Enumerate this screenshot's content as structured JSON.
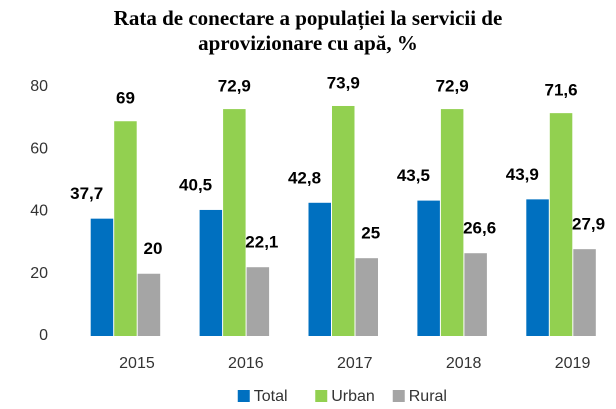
{
  "chart_data": {
    "type": "bar",
    "title": "Rata de conectare a populației la servicii de aprovizionare cu apă, %",
    "categories": [
      "2015",
      "2016",
      "2017",
      "2018",
      "2019"
    ],
    "series": [
      {
        "name": "Total",
        "color": "#0070c0",
        "values": [
          37.7,
          40.5,
          42.8,
          43.5,
          43.9
        ],
        "value_labels": [
          "37,7",
          "40,5",
          "42,8",
          "43,5",
          "43,9"
        ]
      },
      {
        "name": "Urban",
        "color": "#92d050",
        "values": [
          69,
          72.9,
          73.9,
          72.9,
          71.6
        ],
        "value_labels": [
          "69",
          "72,9",
          "73,9",
          "72,9",
          "71,6"
        ]
      },
      {
        "name": "Rural",
        "color": "#a5a5a5",
        "values": [
          20,
          22.1,
          25,
          26.6,
          27.9
        ],
        "value_labels": [
          "20",
          "22,1",
          "25",
          "26,6",
          "27,9"
        ]
      }
    ],
    "ylim": [
      0,
      80
    ],
    "yticks": [
      0,
      20,
      40,
      60,
      80
    ],
    "grid": false,
    "legend": "bottom"
  }
}
